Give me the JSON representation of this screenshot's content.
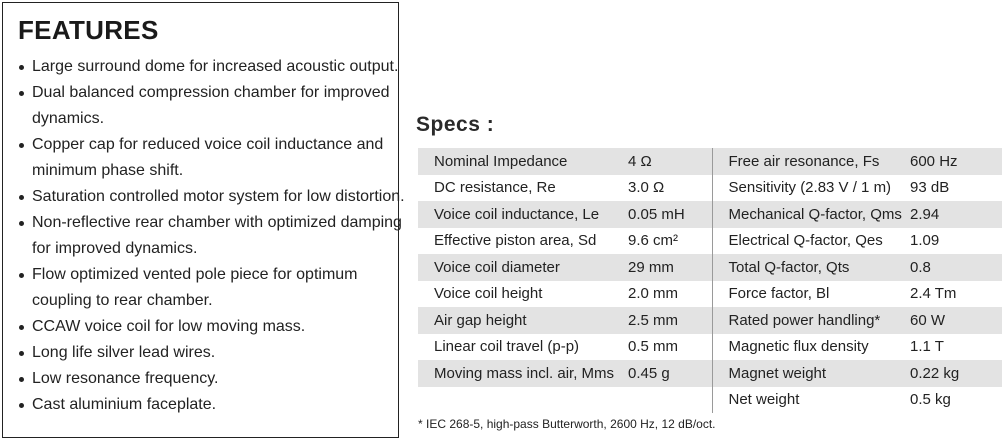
{
  "features": {
    "title": "FEATURES",
    "items": [
      {
        "line1": "Large surround dome for increased acoustic output.",
        "line2": ""
      },
      {
        "line1": "Dual balanced compression chamber for improved",
        "line2": "dynamics."
      },
      {
        "line1": "Copper cap for reduced voice coil inductance and",
        "line2": "minimum phase shift."
      },
      {
        "line1": "Saturation controlled motor system for low distortion.",
        "line2": ""
      },
      {
        "line1": "Non-reflective rear chamber with optimized damping",
        "line2": "for improved dynamics."
      },
      {
        "line1": "Flow optimized vented pole piece for optimum",
        "line2": "coupling to rear chamber."
      },
      {
        "line1": "CCAW voice coil for low moving mass.",
        "line2": ""
      },
      {
        "line1": "Long life silver lead wires.",
        "line2": ""
      },
      {
        "line1": "Low resonance frequency.",
        "line2": ""
      },
      {
        "line1": "Cast aluminium faceplate.",
        "line2": ""
      }
    ]
  },
  "specs": {
    "title": "Specs :",
    "rows": [
      {
        "left_name": "Nominal Impedance",
        "left_value": "4 Ω",
        "right_name": "Free air resonance, Fs",
        "right_value": "600 Hz"
      },
      {
        "left_name": "DC resistance, Re",
        "left_value": "3.0 Ω",
        "right_name": "Sensitivity (2.83 V / 1 m)",
        "right_value": "93 dB"
      },
      {
        "left_name": "Voice coil inductance, Le",
        "left_value": "0.05 mH",
        "right_name": "Mechanical Q-factor, Qms",
        "right_value": "2.94"
      },
      {
        "left_name": "Effective piston area, Sd",
        "left_value": "9.6 cm²",
        "right_name": "Electrical Q-factor, Qes",
        "right_value": "1.09"
      },
      {
        "left_name": "Voice coil diameter",
        "left_value": "29 mm",
        "right_name": "Total Q-factor, Qts",
        "right_value": "0.8"
      },
      {
        "left_name": "Voice coil height",
        "left_value": "2.0 mm",
        "right_name": "Force factor, Bl",
        "right_value": "2.4 Tm"
      },
      {
        "left_name": "Air gap height",
        "left_value": "2.5 mm",
        "right_name": "Rated power handling*",
        "right_value": "60 W"
      },
      {
        "left_name": "Linear coil travel (p-p)",
        "left_value": "0.5 mm",
        "right_name": "Magnetic flux density",
        "right_value": "1.1 T"
      },
      {
        "left_name": "Moving mass incl. air, Mms",
        "left_value": "0.45 g",
        "right_name": "Magnet weight",
        "right_value": "0.22 kg"
      },
      {
        "left_name": "",
        "left_value": "",
        "right_name": "Net weight",
        "right_value": "0.5 kg"
      }
    ],
    "footnote": "* IEC 268-5, high-pass Butterworth, 2600 Hz, 12 dB/oct."
  },
  "colors": {
    "row_shade": "#e3e3e3",
    "text": "#222222",
    "border": "#222222"
  }
}
